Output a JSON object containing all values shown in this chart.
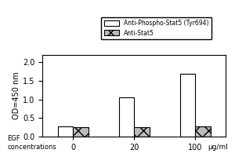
{
  "groups": [
    "0",
    "20",
    "100"
  ],
  "series": [
    {
      "name": "Anti-Phospho-Stat5 (Tyr694)",
      "values": [
        0.28,
        1.06,
        1.7
      ],
      "facecolor": "white",
      "edgecolor": "black",
      "hatch": ""
    },
    {
      "name": "Anti-Stat5",
      "values": [
        0.26,
        0.26,
        0.27
      ],
      "facecolor": "#bbbbbb",
      "edgecolor": "black",
      "hatch": "xx"
    }
  ],
  "ylabel": "OD=450 nm",
  "xlabel_line1": "EGF\nconcentrations",
  "xlabel_unit": "μg/ml",
  "ylim": [
    0.0,
    2.2
  ],
  "yticks": [
    0.0,
    0.5,
    1.0,
    1.5,
    2.0
  ],
  "bar_width": 0.25,
  "group_positions": [
    0.5,
    1.5,
    2.5
  ],
  "xlim": [
    0.0,
    3.0
  ]
}
